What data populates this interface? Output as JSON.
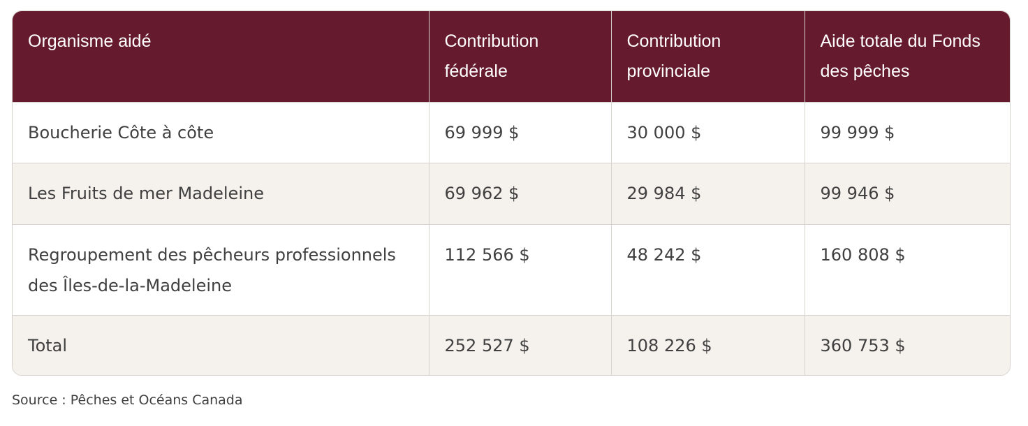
{
  "table": {
    "headers": [
      "Organisme aidé",
      "Contribution fédérale",
      "Contribution provinciale",
      "Aide totale du Fonds des pêches"
    ],
    "rows": [
      [
        "Boucherie Côte à côte",
        "69 999 $",
        "30 000 $",
        "99 999 $"
      ],
      [
        "Les Fruits de mer Madeleine",
        "69 962 $",
        "29 984 $",
        "99 946 $"
      ],
      [
        "Regroupement des pêcheurs professionnels des Îles-de-la-Madeleine",
        "112 566 $",
        "48 242 $",
        "160 808 $"
      ],
      [
        "Total",
        "252 527 $",
        "108 226 $",
        "360 753 $"
      ]
    ]
  },
  "source": "Source : Pêches et Océans Canada",
  "colors": {
    "header_bg": "#661a2d",
    "stripe_bg": "#f5f1ec",
    "border": "#d6d2cd"
  }
}
